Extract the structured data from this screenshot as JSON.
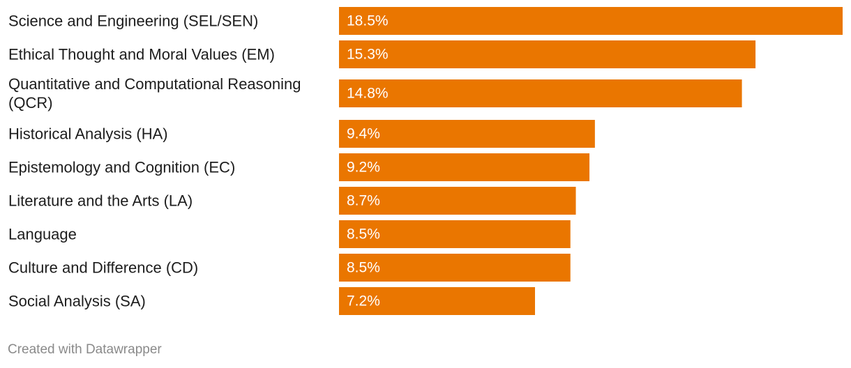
{
  "chart_data": {
    "type": "bar",
    "orientation": "horizontal",
    "categories": [
      "Science and Engineering (SEL/SEN)",
      "Ethical Thought and Moral Values (EM)",
      "Quantitative and Computational Reasoning (QCR)",
      "Historical Analysis (HA)",
      "Epistemology and Cognition (EC)",
      "Literature and the Arts (LA)",
      "Language",
      "Culture and Difference (CD)",
      "Social Analysis (SA)"
    ],
    "values": [
      18.5,
      15.3,
      14.8,
      9.4,
      9.2,
      8.7,
      8.5,
      8.5,
      7.2
    ],
    "value_labels": [
      "18.5%",
      "15.3%",
      "14.8%",
      "9.4%",
      "9.2%",
      "8.7%",
      "8.5%",
      "8.5%",
      "7.2%"
    ],
    "xlim": [
      0,
      18.5
    ],
    "grid": false,
    "legend": "none",
    "title": "",
    "xlabel": "",
    "ylabel": "",
    "bar_color": "#ea7600"
  },
  "footer": {
    "credit": "Created with Datawrapper"
  }
}
